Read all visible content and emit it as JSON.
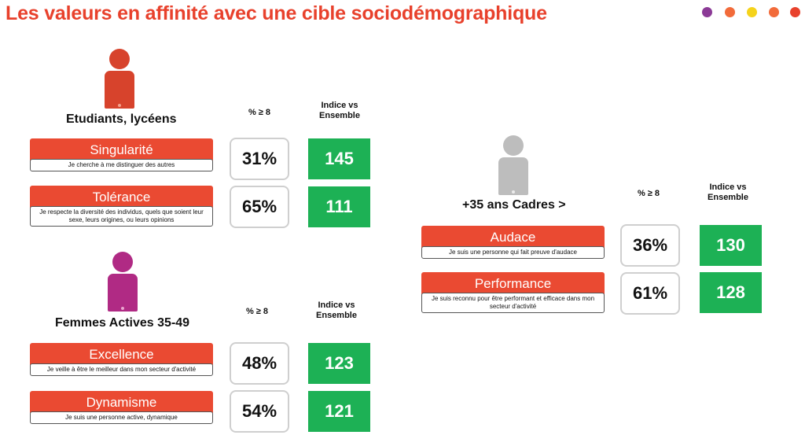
{
  "title": "Les valeurs en affinité avec une cible sociodémographique",
  "dots": [
    {
      "color": "#8b3a96",
      "name": "purple-dot"
    },
    {
      "color": "#f26b3a",
      "name": "orange-dot"
    },
    {
      "color": "#f5d31b",
      "name": "yellow-dot"
    },
    {
      "color": "#f26b3a",
      "name": "orange-dot-2"
    },
    {
      "color": "#e8412c",
      "name": "red-dot"
    }
  ],
  "segments": [
    {
      "name": "Etudiants, lycéens",
      "icon": "person-icon",
      "icon_color": "#d7432c",
      "col_pct": "% ≥ 8",
      "col_idx": "Indice vs Ensemble",
      "rows": [
        {
          "label": "Singularité",
          "desc": "Je cherche à me distinguer des autres",
          "pct": "31%",
          "idx": "145"
        },
        {
          "label": "Tolérance",
          "desc": "Je respecte la diversité des individus, quels que soient leur sexe, leurs origines, ou leurs opinions",
          "pct": "65%",
          "idx": "111"
        }
      ]
    },
    {
      "name": "Femmes Actives 35-49",
      "icon": "person-icon",
      "icon_color": "#b02a84",
      "col_pct": "% ≥ 8",
      "col_idx": "Indice vs Ensemble",
      "rows": [
        {
          "label": "Excellence",
          "desc": "Je veille à être le meilleur dans mon secteur d'activité",
          "pct": "48%",
          "idx": "123"
        },
        {
          "label": "Dynamisme",
          "desc": "Je suis une personne active, dynamique",
          "pct": "54%",
          "idx": "121"
        }
      ]
    },
    {
      "name": "+35 ans Cadres >",
      "icon": "person-icon",
      "icon_color": "#bdbdbd",
      "col_pct": "% ≥ 8",
      "col_idx": "Indice vs Ensemble",
      "rows": [
        {
          "label": "Audace",
          "desc": "Je suis une personne qui fait preuve d'audace",
          "pct": "36%",
          "idx": "130"
        },
        {
          "label": "Performance",
          "desc": "Je suis reconnu pour être performant et efficace dans mon secteur d'activité",
          "pct": "61%",
          "idx": "128"
        }
      ]
    }
  ]
}
